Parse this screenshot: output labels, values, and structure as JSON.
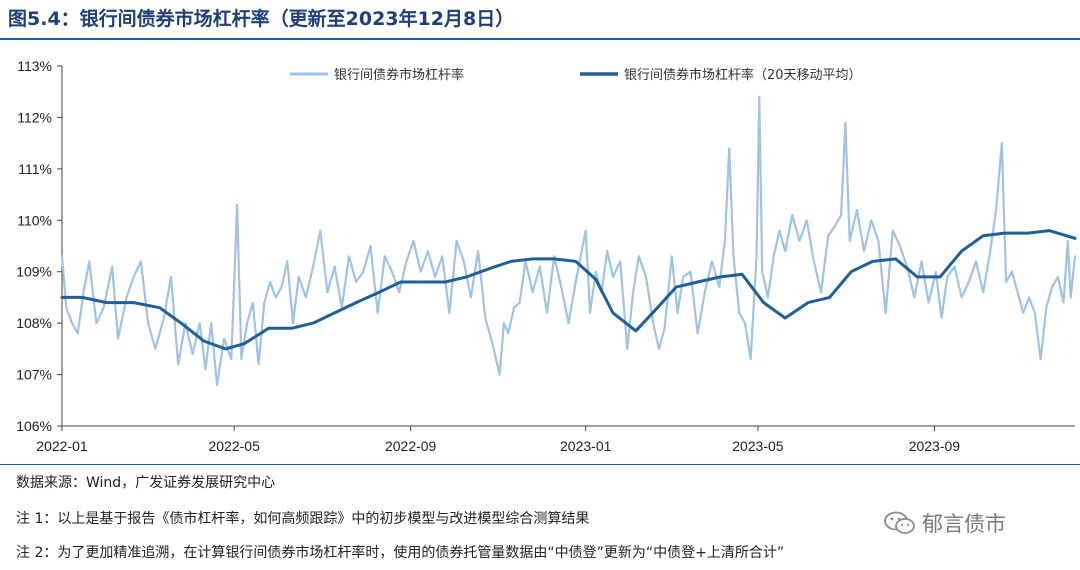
{
  "header": {
    "title": "图5.4：银行间债券市场杠杆率（更新至2023年12月8日）"
  },
  "chart_data": {
    "type": "line",
    "x_axis": {
      "min": "2022-01-01",
      "max": "2023-12-08",
      "tick_labels": [
        "2022-01",
        "2022-05",
        "2022-09",
        "2023-01",
        "2023-05",
        "2023-09"
      ],
      "tick_dates": [
        "2022-01-01",
        "2022-05-01",
        "2022-09-01",
        "2023-01-01",
        "2023-05-01",
        "2023-09-01"
      ]
    },
    "y_axis": {
      "min": 106,
      "max": 113,
      "step": 1,
      "unit": "%",
      "tick_labels": [
        "106%",
        "107%",
        "108%",
        "109%",
        "110%",
        "111%",
        "112%",
        "113%"
      ]
    },
    "grid": false,
    "legend_position": "top",
    "series": [
      {
        "name": "银行间债券市场杠杆率",
        "color": "#9dc3e6",
        "points": [
          [
            "2022-01-01",
            109.3
          ],
          [
            "2022-01-04",
            108.3
          ],
          [
            "2022-01-08",
            108.0
          ],
          [
            "2022-01-12",
            107.8
          ],
          [
            "2022-01-16",
            108.6
          ],
          [
            "2022-01-20",
            109.2
          ],
          [
            "2022-01-25",
            108.0
          ],
          [
            "2022-01-30",
            108.3
          ],
          [
            "2022-02-05",
            109.1
          ],
          [
            "2022-02-09",
            107.7
          ],
          [
            "2022-02-15",
            108.5
          ],
          [
            "2022-02-20",
            108.9
          ],
          [
            "2022-02-25",
            109.2
          ],
          [
            "2022-03-02",
            108.0
          ],
          [
            "2022-03-07",
            107.5
          ],
          [
            "2022-03-13",
            108.1
          ],
          [
            "2022-03-18",
            108.9
          ],
          [
            "2022-03-23",
            107.2
          ],
          [
            "2022-03-28",
            108.0
          ],
          [
            "2022-04-02",
            107.4
          ],
          [
            "2022-04-07",
            108.0
          ],
          [
            "2022-04-11",
            107.1
          ],
          [
            "2022-04-15",
            108.0
          ],
          [
            "2022-04-19",
            106.8
          ],
          [
            "2022-04-24",
            107.7
          ],
          [
            "2022-04-29",
            107.3
          ],
          [
            "2022-05-03",
            110.3
          ],
          [
            "2022-05-06",
            107.3
          ],
          [
            "2022-05-10",
            108.0
          ],
          [
            "2022-05-14",
            108.4
          ],
          [
            "2022-05-18",
            107.2
          ],
          [
            "2022-05-22",
            108.4
          ],
          [
            "2022-05-26",
            108.8
          ],
          [
            "2022-05-30",
            108.5
          ],
          [
            "2022-06-03",
            108.7
          ],
          [
            "2022-06-07",
            109.2
          ],
          [
            "2022-06-11",
            108.0
          ],
          [
            "2022-06-15",
            108.9
          ],
          [
            "2022-06-20",
            108.5
          ],
          [
            "2022-06-25",
            109.1
          ],
          [
            "2022-06-30",
            109.8
          ],
          [
            "2022-07-05",
            108.6
          ],
          [
            "2022-07-10",
            109.1
          ],
          [
            "2022-07-15",
            108.3
          ],
          [
            "2022-07-20",
            109.3
          ],
          [
            "2022-07-25",
            108.8
          ],
          [
            "2022-07-30",
            109.0
          ],
          [
            "2022-08-04",
            109.5
          ],
          [
            "2022-08-09",
            108.2
          ],
          [
            "2022-08-14",
            109.3
          ],
          [
            "2022-08-19",
            109.0
          ],
          [
            "2022-08-24",
            108.6
          ],
          [
            "2022-08-29",
            109.2
          ],
          [
            "2022-09-03",
            109.6
          ],
          [
            "2022-09-08",
            109.0
          ],
          [
            "2022-09-13",
            109.4
          ],
          [
            "2022-09-18",
            108.9
          ],
          [
            "2022-09-23",
            109.3
          ],
          [
            "2022-09-28",
            108.2
          ],
          [
            "2022-10-03",
            109.6
          ],
          [
            "2022-10-08",
            109.2
          ],
          [
            "2022-10-13",
            108.5
          ],
          [
            "2022-10-18",
            109.4
          ],
          [
            "2022-10-23",
            108.1
          ],
          [
            "2022-10-28",
            107.6
          ],
          [
            "2022-11-02",
            107.0
          ],
          [
            "2022-11-05",
            108.0
          ],
          [
            "2022-11-08",
            107.8
          ],
          [
            "2022-11-12",
            108.3
          ],
          [
            "2022-11-16",
            108.4
          ],
          [
            "2022-11-20",
            109.2
          ],
          [
            "2022-11-25",
            108.6
          ],
          [
            "2022-11-30",
            109.1
          ],
          [
            "2022-12-05",
            108.2
          ],
          [
            "2022-12-10",
            109.3
          ],
          [
            "2022-12-15",
            108.7
          ],
          [
            "2022-12-20",
            108.0
          ],
          [
            "2022-12-25",
            108.8
          ],
          [
            "2023-01-01",
            109.8
          ],
          [
            "2023-01-04",
            108.2
          ],
          [
            "2023-01-08",
            109.0
          ],
          [
            "2023-01-12",
            108.6
          ],
          [
            "2023-01-16",
            109.4
          ],
          [
            "2023-01-20",
            108.9
          ],
          [
            "2023-01-25",
            109.2
          ],
          [
            "2023-01-30",
            107.5
          ],
          [
            "2023-02-03",
            108.6
          ],
          [
            "2023-02-07",
            109.3
          ],
          [
            "2023-02-12",
            108.9
          ],
          [
            "2023-02-17",
            108.0
          ],
          [
            "2023-02-21",
            107.5
          ],
          [
            "2023-02-25",
            107.9
          ],
          [
            "2023-03-02",
            109.3
          ],
          [
            "2023-03-06",
            108.2
          ],
          [
            "2023-03-10",
            108.9
          ],
          [
            "2023-03-15",
            109.0
          ],
          [
            "2023-03-20",
            107.8
          ],
          [
            "2023-03-25",
            108.6
          ],
          [
            "2023-03-30",
            109.2
          ],
          [
            "2023-04-04",
            108.7
          ],
          [
            "2023-04-08",
            109.6
          ],
          [
            "2023-04-11",
            111.4
          ],
          [
            "2023-04-14",
            109.3
          ],
          [
            "2023-04-18",
            108.2
          ],
          [
            "2023-04-22",
            108.0
          ],
          [
            "2023-04-26",
            107.3
          ],
          [
            "2023-04-30",
            109.3
          ],
          [
            "2023-05-02",
            112.4
          ],
          [
            "2023-05-04",
            109.0
          ],
          [
            "2023-05-08",
            108.5
          ],
          [
            "2023-05-12",
            109.3
          ],
          [
            "2023-05-16",
            109.8
          ],
          [
            "2023-05-20",
            109.4
          ],
          [
            "2023-05-25",
            110.1
          ],
          [
            "2023-05-30",
            109.6
          ],
          [
            "2023-06-04",
            110.0
          ],
          [
            "2023-06-09",
            109.2
          ],
          [
            "2023-06-14",
            108.6
          ],
          [
            "2023-06-19",
            109.7
          ],
          [
            "2023-06-24",
            109.9
          ],
          [
            "2023-06-28",
            110.1
          ],
          [
            "2023-07-01",
            111.9
          ],
          [
            "2023-07-04",
            109.6
          ],
          [
            "2023-07-09",
            110.2
          ],
          [
            "2023-07-14",
            109.4
          ],
          [
            "2023-07-19",
            110.0
          ],
          [
            "2023-07-24",
            109.6
          ],
          [
            "2023-07-29",
            108.2
          ],
          [
            "2023-08-03",
            109.8
          ],
          [
            "2023-08-08",
            109.5
          ],
          [
            "2023-08-13",
            109.1
          ],
          [
            "2023-08-18",
            108.5
          ],
          [
            "2023-08-23",
            109.2
          ],
          [
            "2023-08-28",
            108.4
          ],
          [
            "2023-09-02",
            109.0
          ],
          [
            "2023-09-06",
            108.1
          ],
          [
            "2023-09-10",
            108.9
          ],
          [
            "2023-09-15",
            109.1
          ],
          [
            "2023-09-20",
            108.5
          ],
          [
            "2023-09-25",
            108.8
          ],
          [
            "2023-09-30",
            109.2
          ],
          [
            "2023-10-05",
            108.6
          ],
          [
            "2023-10-10",
            109.4
          ],
          [
            "2023-10-14",
            110.2
          ],
          [
            "2023-10-18",
            111.5
          ],
          [
            "2023-10-21",
            108.8
          ],
          [
            "2023-10-25",
            109.0
          ],
          [
            "2023-10-29",
            108.6
          ],
          [
            "2023-11-02",
            108.2
          ],
          [
            "2023-11-06",
            108.5
          ],
          [
            "2023-11-10",
            108.2
          ],
          [
            "2023-11-14",
            107.3
          ],
          [
            "2023-11-18",
            108.3
          ],
          [
            "2023-11-22",
            108.7
          ],
          [
            "2023-11-26",
            108.9
          ],
          [
            "2023-11-30",
            108.4
          ],
          [
            "2023-12-03",
            109.6
          ],
          [
            "2023-12-05",
            108.5
          ],
          [
            "2023-12-08",
            109.3
          ]
        ]
      },
      {
        "name": "银行间债券市场杠杆率（20天移动平均）",
        "color": "#1f5f9a",
        "points": [
          [
            "2022-01-01",
            108.5
          ],
          [
            "2022-01-15",
            108.5
          ],
          [
            "2022-02-01",
            108.4
          ],
          [
            "2022-02-20",
            108.4
          ],
          [
            "2022-03-10",
            108.3
          ],
          [
            "2022-03-25",
            108.0
          ],
          [
            "2022-04-10",
            107.65
          ],
          [
            "2022-04-25",
            107.5
          ],
          [
            "2022-05-08",
            107.6
          ],
          [
            "2022-05-25",
            107.9
          ],
          [
            "2022-06-10",
            107.9
          ],
          [
            "2022-06-25",
            108.0
          ],
          [
            "2022-07-10",
            108.2
          ],
          [
            "2022-07-25",
            108.4
          ],
          [
            "2022-08-10",
            108.6
          ],
          [
            "2022-08-25",
            108.8
          ],
          [
            "2022-09-10",
            108.8
          ],
          [
            "2022-09-25",
            108.8
          ],
          [
            "2022-10-10",
            108.9
          ],
          [
            "2022-10-25",
            109.05
          ],
          [
            "2022-11-10",
            109.2
          ],
          [
            "2022-11-25",
            109.25
          ],
          [
            "2022-12-10",
            109.25
          ],
          [
            "2022-12-25",
            109.2
          ],
          [
            "2023-01-08",
            108.85
          ],
          [
            "2023-01-20",
            108.2
          ],
          [
            "2023-02-05",
            107.85
          ],
          [
            "2023-02-20",
            108.3
          ],
          [
            "2023-03-05",
            108.7
          ],
          [
            "2023-03-20",
            108.8
          ],
          [
            "2023-04-05",
            108.9
          ],
          [
            "2023-04-20",
            108.95
          ],
          [
            "2023-05-05",
            108.4
          ],
          [
            "2023-05-20",
            108.1
          ],
          [
            "2023-06-05",
            108.4
          ],
          [
            "2023-06-20",
            108.5
          ],
          [
            "2023-07-05",
            109.0
          ],
          [
            "2023-07-20",
            109.2
          ],
          [
            "2023-08-05",
            109.25
          ],
          [
            "2023-08-20",
            108.9
          ],
          [
            "2023-09-05",
            108.9
          ],
          [
            "2023-09-20",
            109.4
          ],
          [
            "2023-10-05",
            109.7
          ],
          [
            "2023-10-20",
            109.75
          ],
          [
            "2023-11-05",
            109.75
          ],
          [
            "2023-11-20",
            109.8
          ],
          [
            "2023-12-08",
            109.65
          ]
        ]
      }
    ]
  },
  "footer": {
    "source": "数据来源：Wind，广发证券发展研究中心",
    "note1": "注 1：以上是基于报告《债市杠杆率，如何高频跟踪》中的初步模型与改进模型综合测算结果",
    "note2": "注 2：为了更加精准追溯，在计算银行间债券市场杠杆率时，使用的债券托管量数据由“中债登”更新为“中债登+上清所合计”",
    "watermark": "郁言债市"
  }
}
